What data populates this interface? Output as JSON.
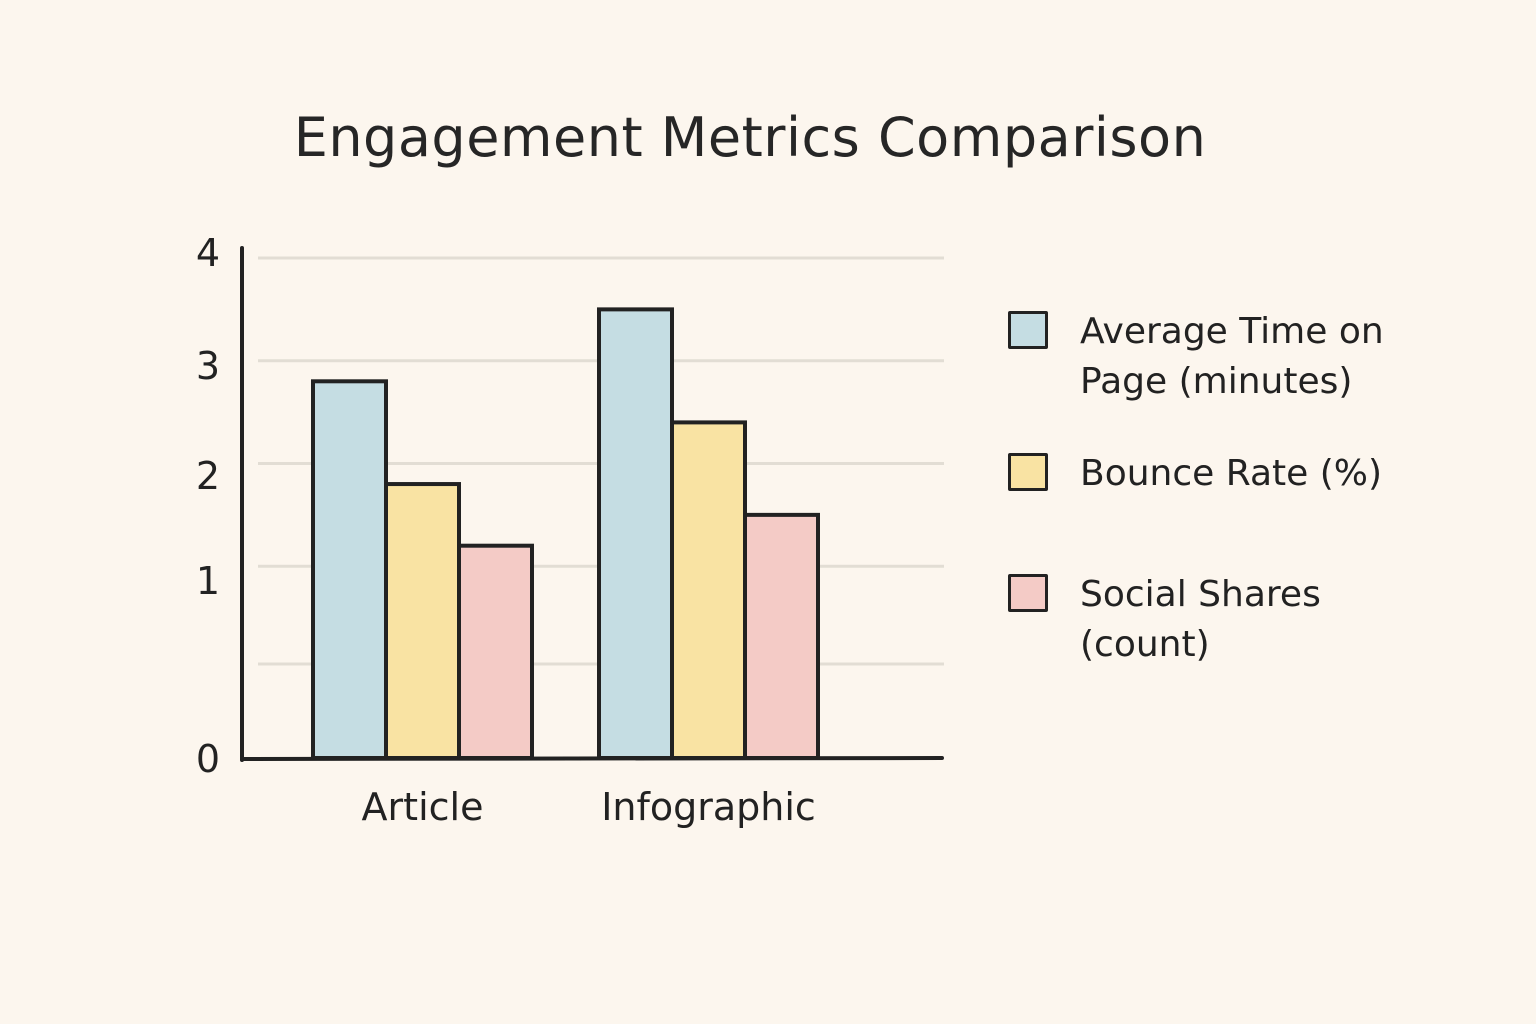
{
  "chart_data": {
    "type": "bar",
    "title": "Engagement Metrics Comparison",
    "xlabel": "",
    "ylabel": "",
    "categories": [
      "Article",
      "Infographic"
    ],
    "y_ticks": [
      "0",
      "1",
      "2",
      "3",
      "4"
    ],
    "ylim": [
      0,
      4
    ],
    "grid": true,
    "legend_position": "right",
    "series": [
      {
        "name": "Average Time on Page (minutes)",
        "color": "#c5dde3",
        "values": [
          2.8,
          3.5
        ]
      },
      {
        "name": "Bounce Rate (%)",
        "color": "#f9e3a3",
        "values": [
          1.8,
          2.4
        ]
      },
      {
        "name": "Social Shares (count)",
        "color": "#f4cbc6",
        "values": [
          1.2,
          1.5
        ]
      }
    ]
  }
}
